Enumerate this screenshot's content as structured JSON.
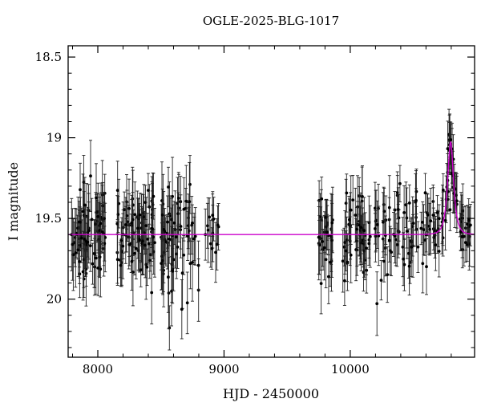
{
  "page": {
    "background": "#ffffff"
  },
  "chart_data": {
    "type": "scatter",
    "title": "OGLE-2025-BLG-1017",
    "xlabel": "HJD - 2450000",
    "ylabel": "I magnitude",
    "xlim": [
      7765,
      10985
    ],
    "ylim": [
      18.43,
      20.36
    ],
    "y_axis_inverted": true,
    "x_ticks": {
      "values": [
        8000,
        9000,
        10000
      ],
      "labels": [
        "8000",
        "9000",
        "10000"
      ],
      "minor_step": 200
    },
    "y_ticks": {
      "values": [
        18.5,
        19.0,
        19.5,
        20.0
      ],
      "labels": [
        "18.5",
        "19",
        "19.5",
        "20"
      ],
      "minor_step": 0.1
    },
    "grid": "off",
    "legend": "none",
    "point_color": "#000000",
    "error_bar_color": "#222222",
    "model_color": "#cc00cc",
    "model": {
      "type": "point-lens-microlensing",
      "baseline_mag": 19.6,
      "t0": 10795,
      "tE": 34,
      "u0": 0.69,
      "peak_mag": 19.03
    },
    "seed": 7,
    "seasons": [
      {
        "x0": 7790,
        "x1": 8060,
        "n": 78,
        "dm": 0.0,
        "sd": 0.13,
        "err": 0.16
      },
      {
        "x0": 8150,
        "x1": 8460,
        "n": 80,
        "dm": -0.01,
        "sd": 0.12,
        "err": 0.15
      },
      {
        "x0": 8500,
        "x1": 8800,
        "n": 68,
        "dm": 0.02,
        "sd": 0.14,
        "err": 0.17
      },
      {
        "x0": 8840,
        "x1": 8960,
        "n": 14,
        "dm": -0.04,
        "sd": 0.1,
        "err": 0.14
      },
      {
        "x0": 9750,
        "x1": 9865,
        "n": 30,
        "dm": 0.0,
        "sd": 0.12,
        "err": 0.16
      },
      {
        "x0": 9940,
        "x1": 10160,
        "n": 48,
        "dm": 0.0,
        "sd": 0.12,
        "err": 0.16
      },
      {
        "x0": 10190,
        "x1": 10645,
        "n": 72,
        "dm": -0.03,
        "sd": 0.11,
        "err": 0.14
      },
      {
        "x0": 10650,
        "x1": 10960,
        "n": 58,
        "dm": -0.02,
        "sd": 0.08,
        "err": 0.13
      },
      {
        "x0": 10770,
        "x1": 10830,
        "n": 12,
        "dm": 0.0,
        "sd": 0.07,
        "err": 0.12
      }
    ]
  }
}
